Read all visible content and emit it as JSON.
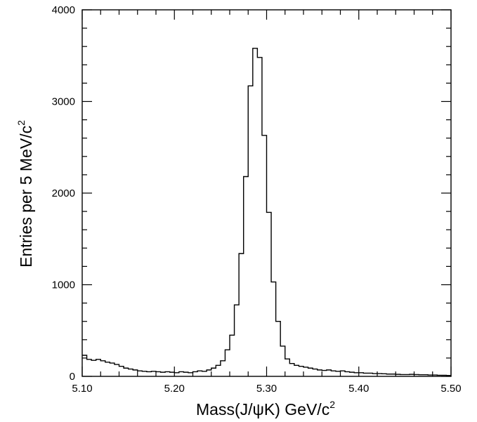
{
  "chart_data": {
    "type": "histogram",
    "title": "",
    "xlabel": "Mass(J/ψK) GeV/c",
    "xlabel_superscript": "2",
    "ylabel": "Entries per 5 MeV/c",
    "ylabel_superscript": "2",
    "xlim": [
      5.1,
      5.5
    ],
    "ylim": [
      0,
      4000
    ],
    "bin_width": 0.005,
    "x_ticks": [
      "5.10",
      "5.20",
      "5.30",
      "5.40",
      "5.50"
    ],
    "y_ticks": [
      "0",
      "1000",
      "2000",
      "3000",
      "4000"
    ],
    "x_tick_values": [
      5.1,
      5.2,
      5.3,
      5.4,
      5.5
    ],
    "y_tick_values": [
      0,
      1000,
      2000,
      3000,
      4000
    ],
    "grid": false,
    "legend": "none",
    "bin_edges_start": 5.1,
    "values": [
      230,
      185,
      175,
      185,
      170,
      155,
      145,
      130,
      110,
      90,
      80,
      70,
      60,
      55,
      50,
      55,
      50,
      45,
      50,
      45,
      40,
      50,
      45,
      40,
      50,
      60,
      55,
      70,
      90,
      120,
      170,
      290,
      450,
      780,
      1340,
      2180,
      3170,
      3580,
      3480,
      2630,
      1790,
      1030,
      600,
      330,
      190,
      140,
      120,
      110,
      100,
      90,
      80,
      70,
      65,
      70,
      60,
      55,
      60,
      50,
      45,
      40,
      40,
      35,
      35,
      30,
      30,
      28,
      25,
      25,
      22,
      20,
      20,
      22,
      20,
      18,
      18,
      15,
      15,
      12,
      12,
      10
    ],
    "line_color": "#000000"
  }
}
